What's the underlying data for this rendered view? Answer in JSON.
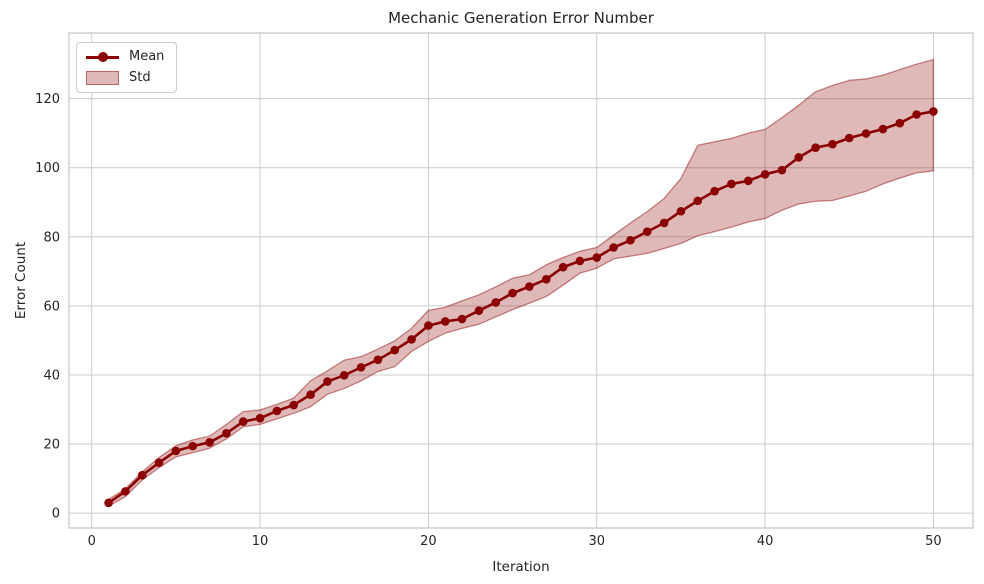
{
  "figure": {
    "title": "Mechanic Generation Error Number",
    "xlabel": "Iteration",
    "ylabel": "Error Count"
  },
  "legend": {
    "items": [
      {
        "label": "Mean",
        "type": "line-marker"
      },
      {
        "label": "Std",
        "type": "patch"
      }
    ]
  },
  "chart_data": {
    "type": "line",
    "title": "Mechanic Generation Error Number",
    "xlabel": "Iteration",
    "ylabel": "Error Count",
    "grid": true,
    "legend_position": "upper-left",
    "xlim": [
      -1.35,
      52.35
    ],
    "ylim": [
      -4.3,
      139.0
    ],
    "xticks": [
      0,
      10,
      20,
      30,
      40,
      50
    ],
    "yticks": [
      0,
      20,
      40,
      60,
      80,
      100,
      120
    ],
    "x": [
      1,
      2,
      3,
      4,
      5,
      6,
      7,
      8,
      9,
      10,
      11,
      12,
      13,
      14,
      15,
      16,
      17,
      18,
      19,
      20,
      21,
      22,
      23,
      24,
      25,
      26,
      27,
      28,
      29,
      30,
      31,
      32,
      33,
      34,
      35,
      36,
      37,
      38,
      39,
      40,
      41,
      42,
      43,
      44,
      45,
      46,
      47,
      48,
      49,
      50
    ],
    "series": [
      {
        "name": "Mean",
        "style": "line+marker",
        "color": "#8B0000",
        "values": [
          3.0,
          6.3,
          11.0,
          14.6,
          18.0,
          19.4,
          20.5,
          23.1,
          26.5,
          27.5,
          29.6,
          31.3,
          34.3,
          38.1,
          39.9,
          42.2,
          44.4,
          47.2,
          50.3,
          54.3,
          55.5,
          56.2,
          58.6,
          61.0,
          63.7,
          65.6,
          67.7,
          71.2,
          73.0,
          74.0,
          76.9,
          79.0,
          81.5,
          84.0,
          87.4,
          90.4,
          93.2,
          95.3,
          96.2,
          98.1,
          99.3,
          103.0,
          105.8,
          106.8,
          108.6,
          109.9,
          111.2,
          112.9,
          115.4,
          116.3
        ]
      },
      {
        "name": "Std",
        "style": "band",
        "color": "#8B0000",
        "fill_alpha": 0.28,
        "upper": [
          4.0,
          7.0,
          12.0,
          16.1,
          19.5,
          21.2,
          22.3,
          25.7,
          29.4,
          29.9,
          31.5,
          33.3,
          38.3,
          41.2,
          44.3,
          45.3,
          47.5,
          49.9,
          53.5,
          58.7,
          59.6,
          61.5,
          63.2,
          65.5,
          68.0,
          69.0,
          71.9,
          74.0,
          75.8,
          76.9,
          80.5,
          84.0,
          87.3,
          91.1,
          96.9,
          106.5,
          107.5,
          108.5,
          110.0,
          111.1,
          114.5,
          118.1,
          122.0,
          123.8,
          125.3,
          125.7,
          126.8,
          128.4,
          130.0,
          131.3
        ],
        "lower": [
          2.0,
          4.8,
          9.6,
          13.2,
          16.3,
          17.5,
          18.8,
          21.5,
          25.0,
          25.7,
          27.3,
          28.9,
          30.8,
          34.4,
          36.1,
          38.3,
          41.0,
          42.4,
          46.8,
          49.7,
          52.1,
          53.5,
          54.7,
          56.8,
          58.9,
          60.8,
          62.7,
          66.0,
          69.5,
          70.9,
          73.6,
          74.4,
          75.2,
          76.6,
          78.1,
          80.3,
          81.5,
          82.8,
          84.3,
          85.3,
          87.7,
          89.5,
          90.3,
          90.5,
          91.8,
          93.2,
          95.3,
          97.0,
          98.5,
          99.1
        ]
      }
    ],
    "colors": {
      "line": "#8B0000",
      "band_fill": "rgba(139,0,0,0.28)",
      "band_edge": "rgba(139,0,0,0.45)",
      "grid": "#cccccc",
      "spine": "#c3c3c3",
      "text": "#262626",
      "background": "#ffffff"
    }
  }
}
